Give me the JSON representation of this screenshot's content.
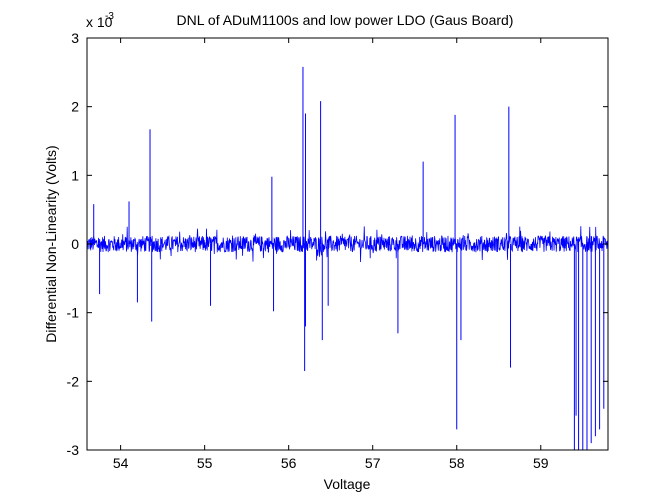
{
  "chart_data": {
    "type": "line",
    "title": "DNL of ADuM1100s and low power LDO (Gaus Board)",
    "xlabel": "Voltage",
    "ylabel": "Differential Non-Linearity (Volts)",
    "y_exponent_label": "x 10",
    "y_exponent_power": "-3",
    "xlim": [
      53.6,
      59.8
    ],
    "ylim": [
      -0.003,
      0.003
    ],
    "x_ticks": [
      54,
      55,
      56,
      57,
      58,
      59
    ],
    "x_tick_labels": [
      "54",
      "55",
      "56",
      "57",
      "58",
      "59"
    ],
    "y_ticks": [
      -0.003,
      -0.002,
      -0.001,
      0,
      0.001,
      0.002,
      0.003
    ],
    "y_tick_labels": [
      "-3",
      "-2",
      "-1",
      "0",
      "1",
      "2",
      "3"
    ],
    "grid": false,
    "series": [
      {
        "color": "#0000ff",
        "noise_band": [
          -0.00012,
          0.00012
        ],
        "x": [
          53.68,
          53.75,
          54.1,
          54.2,
          54.35,
          54.37,
          55.07,
          55.8,
          55.82,
          56.17,
          56.19,
          56.2,
          56.2,
          56.38,
          56.4,
          56.47,
          57.3,
          57.6,
          57.98,
          58.0,
          58.05,
          58.62,
          58.64,
          59.4,
          59.42,
          59.45,
          59.5,
          59.55,
          59.6,
          59.65,
          59.7,
          59.75
        ],
        "y": [
          0.00058,
          -0.00073,
          0.00062,
          -0.00085,
          0.00167,
          -0.00113,
          -0.0009,
          0.00098,
          -0.00098,
          0.00258,
          -0.00185,
          0.0019,
          -0.0012,
          0.00208,
          -0.0014,
          -0.0009,
          -0.0013,
          0.0012,
          0.00188,
          -0.0027,
          -0.0014,
          0.002,
          -0.0018,
          -0.003,
          -0.0025,
          -0.003,
          -0.003,
          -0.003,
          -0.0029,
          -0.0028,
          -0.0027,
          -0.0024
        ]
      }
    ]
  }
}
